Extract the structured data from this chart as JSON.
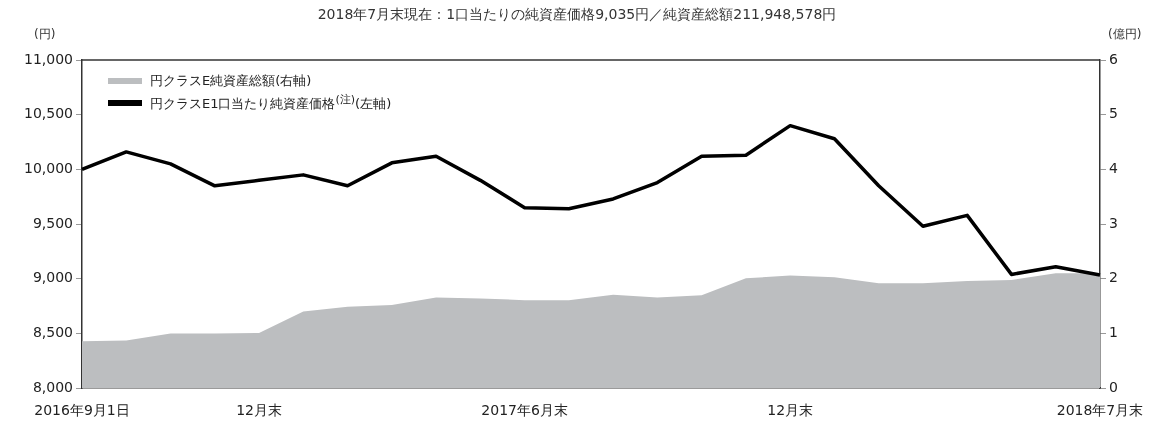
{
  "chart_data": {
    "type": "line",
    "title": "2018年7月末現在：1口当たりの純資産価格9,035円／純資産総額211,948,578円",
    "ylabel": "(円)",
    "y2label": "(億円)",
    "categories": [
      "2016年9月1日",
      null,
      null,
      null,
      "12月末",
      null,
      null,
      null,
      null,
      null,
      "2017年6月末",
      null,
      null,
      null,
      null,
      null,
      "12月末",
      null,
      null,
      null,
      null,
      null,
      null,
      "2018年7月末"
    ],
    "series": [
      {
        "name": "円クラスE純資産総額(右軸)",
        "type": "area",
        "axis": "y2",
        "color": "#bcbec0",
        "values": [
          0.86,
          0.87,
          1.0,
          1.0,
          1.01,
          1.4,
          1.49,
          1.52,
          1.66,
          1.64,
          1.61,
          1.61,
          1.71,
          1.66,
          1.7,
          2.01,
          2.06,
          2.03,
          1.92,
          1.92,
          1.96,
          1.98,
          2.1,
          2.1
        ]
      },
      {
        "name": "円クラスE1口当たり純資産価格$^{(注)}$(左軸)",
        "type": "line",
        "color": "#000000",
        "values": [
          10000,
          10160,
          10050,
          9850,
          9900,
          9950,
          9850,
          10060,
          10120,
          9900,
          9650,
          9640,
          9730,
          9880,
          10120,
          10130,
          10400,
          10280,
          9850,
          9480,
          9580,
          9040,
          9110,
          9035
        ]
      }
    ],
    "ylim": [
      8000,
      11000
    ],
    "yticks": [
      {
        "value": 8000,
        "label": "8,000"
      },
      {
        "value": 8500,
        "label": "8,500"
      },
      {
        "value": 9000,
        "label": "9,000"
      },
      {
        "value": 9500,
        "label": "9,500"
      },
      {
        "value": 10000,
        "label": "10,000"
      },
      {
        "value": 10500,
        "label": "10,500"
      },
      {
        "value": 11000,
        "label": "11,000"
      }
    ],
    "y2lim": [
      0,
      6
    ],
    "y2ticks": [
      0,
      1,
      2,
      3,
      4,
      5,
      6
    ],
    "grid": false,
    "legend": "top left",
    "marker": "none"
  }
}
